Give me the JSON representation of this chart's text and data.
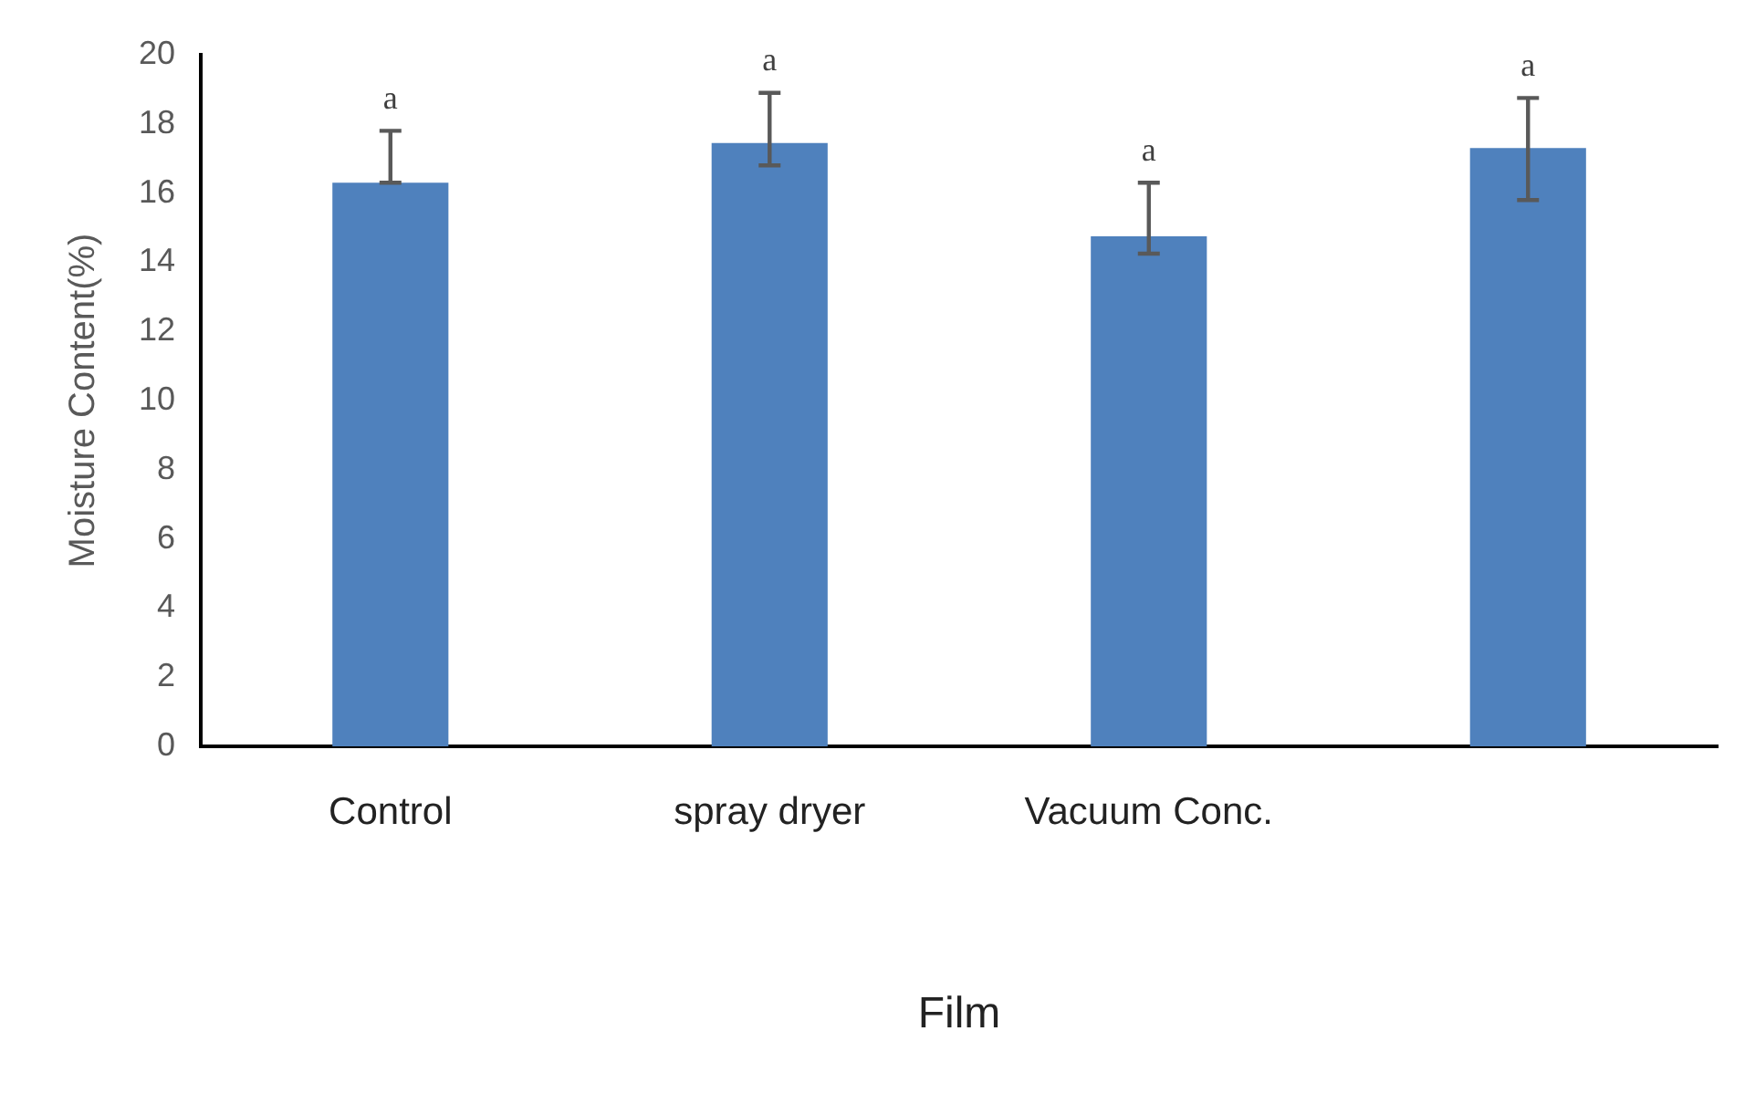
{
  "chart_data": {
    "type": "bar",
    "xlabel": "Film",
    "ylabel": "Moisture Content(%)",
    "categories": [
      "Control",
      "spray dryer",
      "Vacuum Conc.",
      null
    ],
    "values": [
      16.3,
      17.45,
      14.75,
      17.3
    ],
    "errors": [
      [
        16.3,
        17.8
      ],
      [
        16.8,
        18.9
      ],
      [
        14.25,
        16.3
      ],
      [
        15.8,
        18.75
      ]
    ],
    "color": "#4f81bd",
    "ylim": [
      0,
      20
    ],
    "yticks": [
      0,
      2,
      4,
      6,
      8,
      10,
      12,
      14,
      16,
      18,
      20
    ],
    "grid": false,
    "legend": false,
    "annotations": [
      "a",
      "a",
      "a",
      "a"
    ]
  }
}
